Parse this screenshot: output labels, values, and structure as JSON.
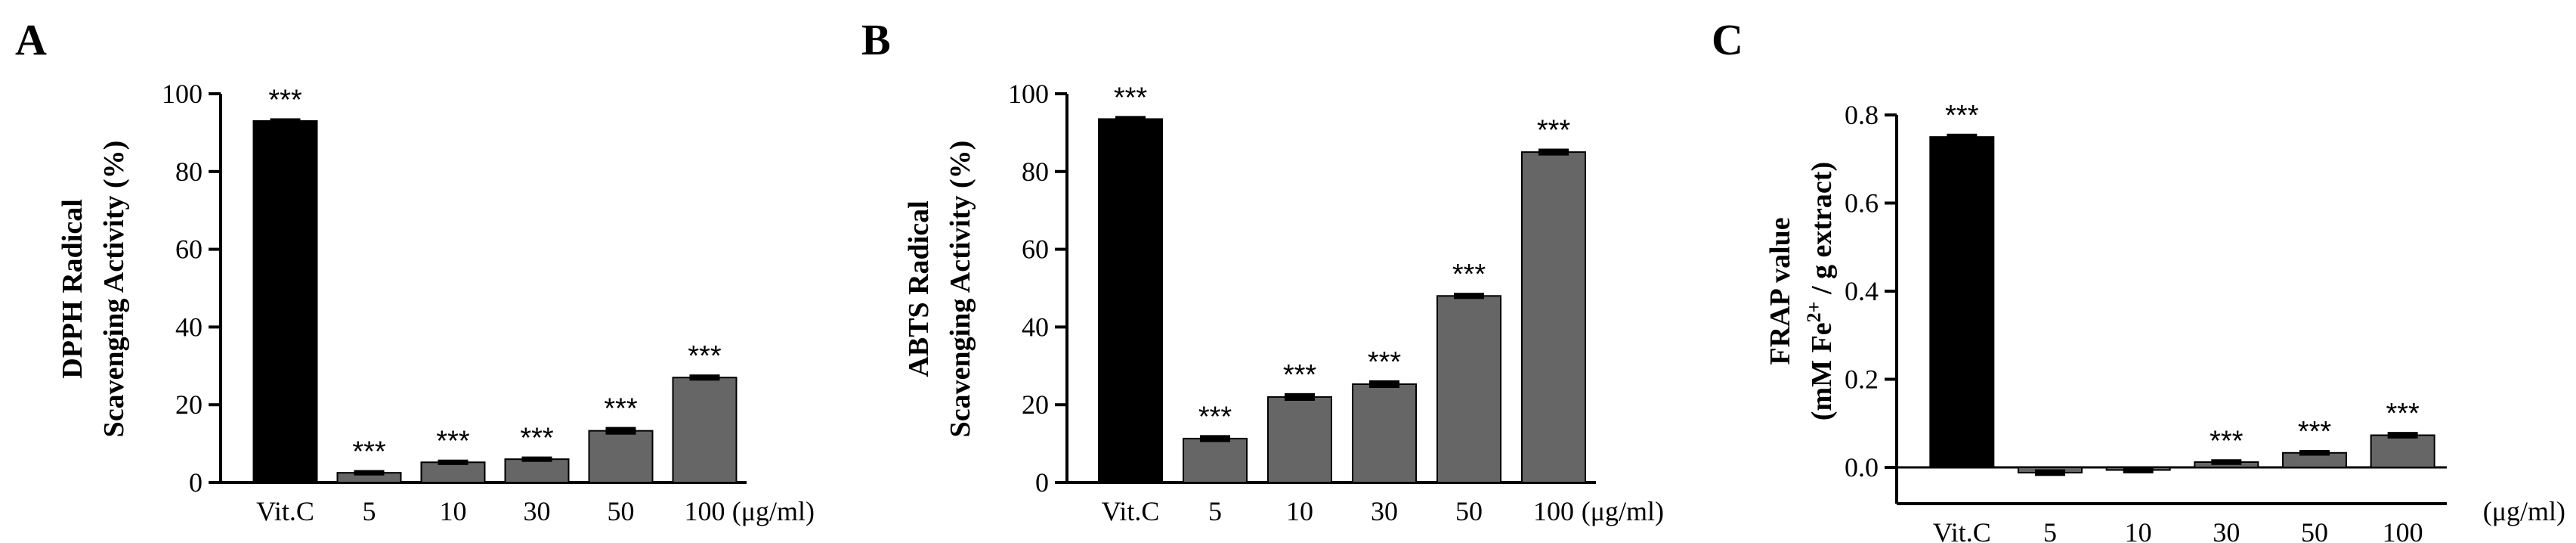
{
  "chart_data": [
    {
      "type": "bar",
      "panel_label": "A",
      "ylabel_line1": "DPPH Radical",
      "ylabel_line2": "Scavenging Activity  (%)",
      "unit_label": "(μg/ml)",
      "categories": [
        "Vit.C",
        "5",
        "10",
        "30",
        "50",
        "100"
      ],
      "values": [
        93,
        2.5,
        5.2,
        6,
        13.3,
        27
      ],
      "errors": [
        0.3,
        0.3,
        0.3,
        0.3,
        0.6,
        0.4
      ],
      "significance": [
        "***",
        "***",
        "***",
        "***",
        "***",
        "***"
      ],
      "ylim": [
        0,
        100
      ],
      "yticks": [
        "0",
        "20",
        "40",
        "60",
        "80",
        "100"
      ],
      "bar_colors": [
        "#000000",
        "#666666",
        "#666666",
        "#666666",
        "#666666",
        "#666666"
      ]
    },
    {
      "type": "bar",
      "panel_label": "B",
      "ylabel_line1": "ABTS Radical",
      "ylabel_line2": "Scavenging Activity  (%)",
      "unit_label": "(μg/ml)",
      "categories": [
        "Vit.C",
        "5",
        "10",
        "30",
        "50",
        "100"
      ],
      "values": [
        93.5,
        11.3,
        22,
        25.3,
        48,
        85
      ],
      "errors": [
        0.4,
        0.5,
        0.6,
        0.6,
        0.4,
        0.5
      ],
      "significance": [
        "***",
        "***",
        "***",
        "***",
        "***",
        "***"
      ],
      "ylim": [
        0,
        100
      ],
      "yticks": [
        "0",
        "20",
        "40",
        "60",
        "80",
        "100"
      ],
      "bar_colors": [
        "#000000",
        "#666666",
        "#666666",
        "#666666",
        "#666666",
        "#666666"
      ]
    },
    {
      "type": "bar",
      "panel_label": "C",
      "ylabel_line1": "FRAP value",
      "ylabel_line2_prefix": "(mM Fe",
      "ylabel_line2_sup": "2+",
      "ylabel_line2_suffix": " / g extract)",
      "unit_label": "(μg/ml)",
      "categories": [
        "Vit.C",
        "5",
        "10",
        "30",
        "50",
        "100"
      ],
      "values": [
        0.75,
        -0.012,
        -0.006,
        0.012,
        0.033,
        0.073
      ],
      "errors": [
        0.004,
        0.004,
        0.004,
        0.003,
        0.003,
        0.004
      ],
      "significance": [
        "***",
        "",
        "",
        "***",
        "***",
        "***"
      ],
      "ylim": [
        0,
        0.8
      ],
      "yticks": [
        "0.0",
        "0.2",
        "0.4",
        "0.6",
        "0.8"
      ],
      "bar_colors": [
        "#000000",
        "#666666",
        "#666666",
        "#666666",
        "#666666",
        "#666666"
      ]
    }
  ]
}
